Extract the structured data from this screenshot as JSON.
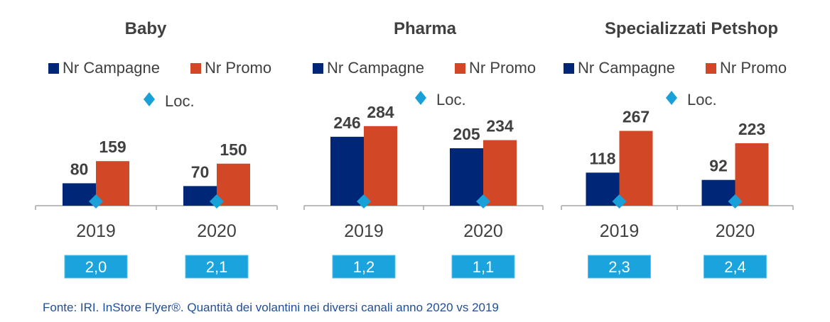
{
  "colors": {
    "campagne": "#002677",
    "promo": "#d24726",
    "loc": "#1aa0d8",
    "loc_box": "#1aa3dc",
    "axis": "#a6a6a6",
    "text": "#404040",
    "source": "#1f4e9c"
  },
  "legend": {
    "campagne": "Nr Campagne",
    "promo": "Nr Promo",
    "loc": "Loc."
  },
  "chart_data": [
    {
      "type": "bar",
      "title": "Baby",
      "categories": [
        "2019",
        "2020"
      ],
      "series": [
        {
          "name": "Nr Campagne",
          "values": [
            80,
            70
          ]
        },
        {
          "name": "Nr Promo",
          "values": [
            159,
            150
          ]
        },
        {
          "name": "Loc.",
          "values": [
            2.0,
            2.1
          ]
        }
      ],
      "loc_labels": [
        "2,0",
        "2,1"
      ],
      "ylim": [
        0,
        300
      ]
    },
    {
      "type": "bar",
      "title": "Pharma",
      "categories": [
        "2019",
        "2020"
      ],
      "series": [
        {
          "name": "Nr Campagne",
          "values": [
            246,
            205
          ]
        },
        {
          "name": "Nr Promo",
          "values": [
            284,
            234
          ]
        },
        {
          "name": "Loc.",
          "values": [
            1.2,
            1.1
          ]
        }
      ],
      "loc_labels": [
        "1,2",
        "1,1"
      ],
      "ylim": [
        0,
        300
      ]
    },
    {
      "type": "bar",
      "title": "Specializzati Petshop",
      "categories": [
        "2019",
        "2020"
      ],
      "series": [
        {
          "name": "Nr Campagne",
          "values": [
            118,
            92
          ]
        },
        {
          "name": "Nr Promo",
          "values": [
            267,
            223
          ]
        },
        {
          "name": "Loc.",
          "values": [
            2.3,
            2.4
          ]
        }
      ],
      "loc_labels": [
        "2,3",
        "2,4"
      ],
      "ylim": [
        0,
        300
      ]
    }
  ],
  "source": "Fonte: IRI. InStore Flyer®. Quantità dei volantini nei diversi canali anno 2020 vs 2019"
}
